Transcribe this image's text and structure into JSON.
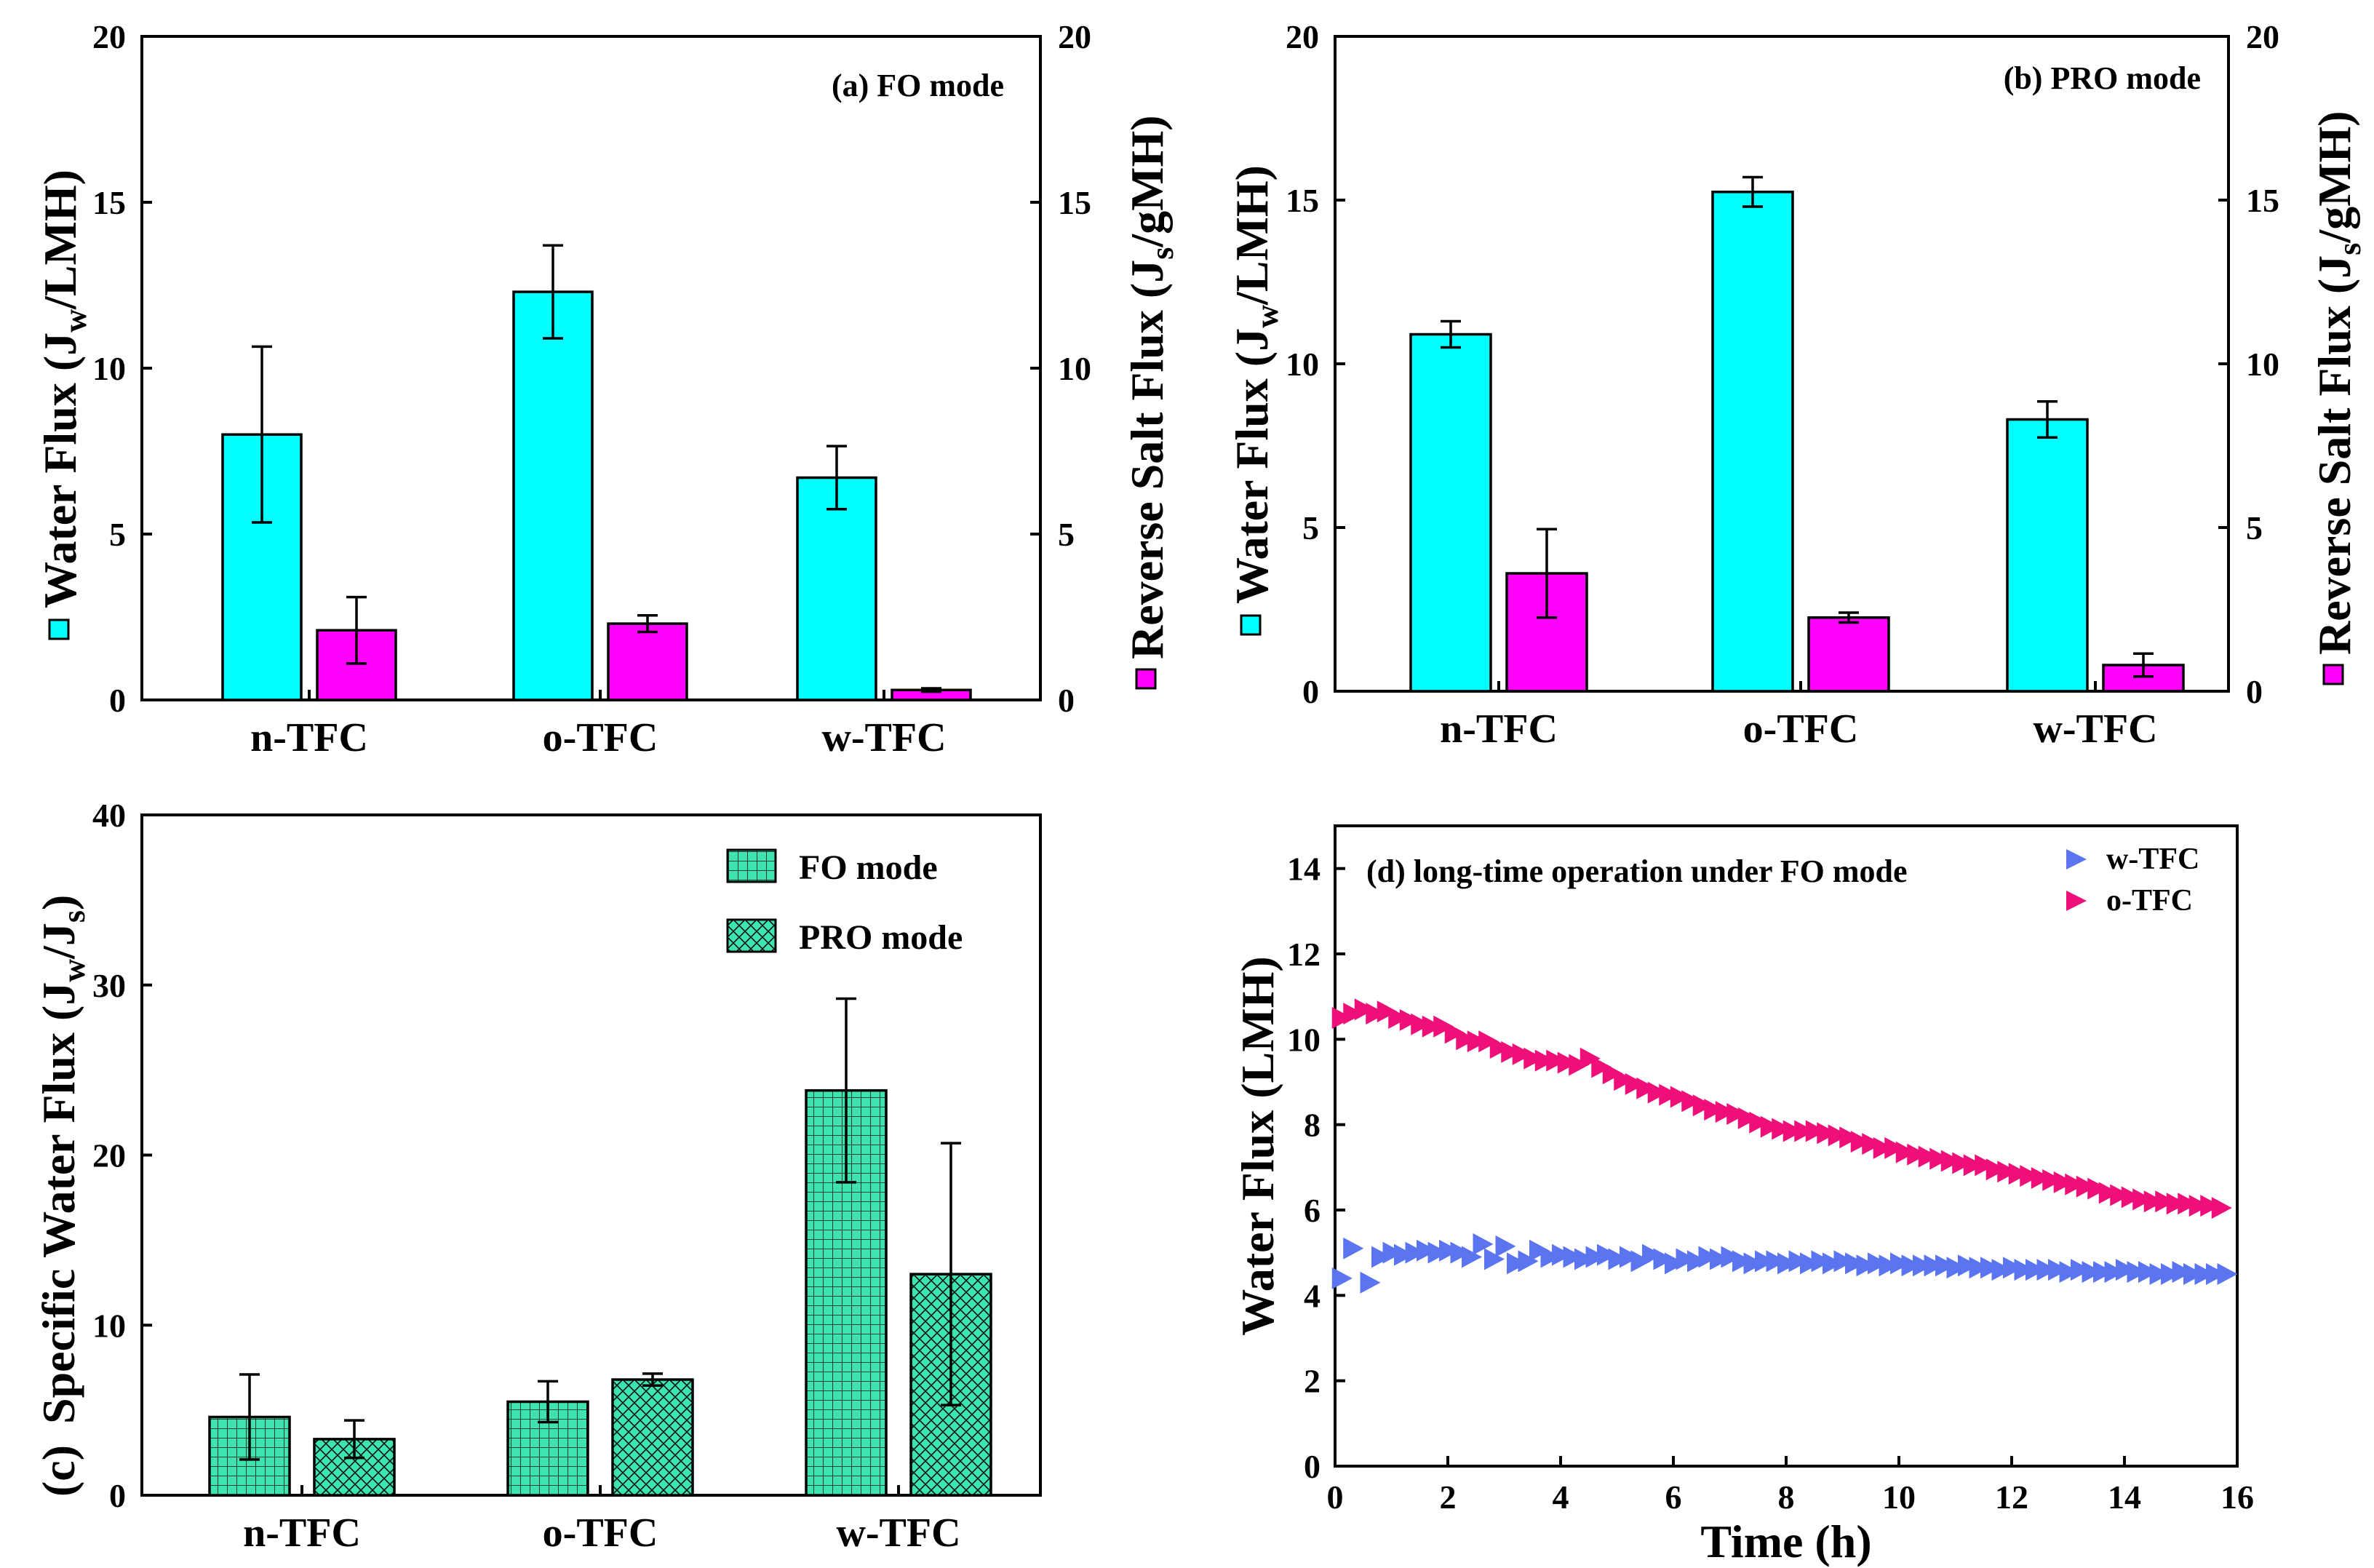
{
  "colors": {
    "water": "#00ffff",
    "salt": "#ff00ff",
    "specific": "#3fe3b0",
    "w_tfc": "#5b74f0",
    "o_tfc": "#ee0f78"
  },
  "chart_data": [
    {
      "type": "bar",
      "panel": "a",
      "annotation": "(a) FO mode",
      "categories": [
        "n-TFC",
        "o-TFC",
        "w-TFC"
      ],
      "ylabel_left": "Water Flux (J_w/LMH)",
      "ylabel_right": "Reverse Salt Flux (J_s/gMH)",
      "ylim": [
        0,
        20
      ],
      "ylim_right": [
        0,
        20
      ],
      "yticks": [
        "0",
        "5",
        "10",
        "15",
        "20"
      ],
      "series": [
        {
          "name": "Water Flux",
          "axis": "left",
          "values": [
            8.0,
            12.3,
            6.7
          ],
          "errors": [
            2.65,
            1.4,
            0.95
          ]
        },
        {
          "name": "Reverse Salt Flux",
          "axis": "right",
          "values": [
            2.1,
            2.3,
            0.3
          ],
          "errors": [
            1.0,
            0.25,
            0.05
          ]
        }
      ]
    },
    {
      "type": "bar",
      "panel": "b",
      "annotation": "(b) PRO mode",
      "categories": [
        "n-TFC",
        "o-TFC",
        "w-TFC"
      ],
      "ylabel_left": "Water Flux (J_w/LMH)",
      "ylabel_right": "Reverse Salt Flux (J_s/gMH)",
      "ylim": [
        0,
        20
      ],
      "ylim_right": [
        0,
        20
      ],
      "yticks": [
        "0",
        "5",
        "10",
        "15",
        "20"
      ],
      "series": [
        {
          "name": "Water Flux",
          "axis": "left",
          "values": [
            10.9,
            15.25,
            8.3
          ],
          "errors": [
            0.4,
            0.45,
            0.55
          ]
        },
        {
          "name": "Reverse Salt Flux",
          "axis": "right",
          "values": [
            3.6,
            2.25,
            0.8
          ],
          "errors": [
            1.35,
            0.15,
            0.35
          ]
        }
      ]
    },
    {
      "type": "bar",
      "panel": "c",
      "annotation": "(c)",
      "categories": [
        "n-TFC",
        "o-TFC",
        "w-TFC"
      ],
      "ylabel": "Specific Water Flux (J_w/J_s)",
      "ylim": [
        0,
        40
      ],
      "yticks": [
        "0",
        "10",
        "20",
        "30",
        "40"
      ],
      "series": [
        {
          "name": "FO mode",
          "values": [
            4.6,
            5.5,
            23.8
          ],
          "errors": [
            2.5,
            1.2,
            5.4
          ]
        },
        {
          "name": "PRO mode",
          "values": [
            3.3,
            6.8,
            13.0
          ],
          "errors": [
            1.1,
            0.35,
            7.7
          ]
        }
      ],
      "legend_position": "top-right"
    },
    {
      "type": "scatter",
      "panel": "d",
      "annotation": "(d) long-time operation under FO mode",
      "xlabel": "Time (h)",
      "ylabel": "Water Flux (LMH)",
      "xlim": [
        0,
        16
      ],
      "ylim": [
        0,
        15
      ],
      "xticks": [
        "0",
        "2",
        "4",
        "6",
        "8",
        "10",
        "12",
        "14",
        "16"
      ],
      "yticks": [
        "0",
        "2",
        "4",
        "6",
        "8",
        "10",
        "12",
        "14"
      ],
      "series": [
        {
          "name": "w-TFC",
          "points": [
            [
              0.1,
              4.4
            ],
            [
              0.3,
              5.1
            ],
            [
              0.6,
              4.3
            ],
            [
              0.8,
              4.9
            ],
            [
              1.0,
              5.0
            ],
            [
              1.2,
              4.95
            ],
            [
              1.4,
              5.0
            ],
            [
              1.6,
              5.05
            ],
            [
              1.8,
              5.0
            ],
            [
              2.0,
              5.05
            ],
            [
              2.2,
              5.0
            ],
            [
              2.4,
              4.9
            ],
            [
              2.6,
              5.2
            ],
            [
              2.8,
              4.85
            ],
            [
              3.0,
              5.15
            ],
            [
              3.2,
              4.75
            ],
            [
              3.4,
              4.8
            ],
            [
              3.6,
              5.05
            ],
            [
              3.8,
              4.9
            ],
            [
              4.0,
              4.95
            ],
            [
              4.2,
              4.9
            ],
            [
              4.4,
              4.85
            ],
            [
              4.6,
              4.9
            ],
            [
              4.8,
              4.95
            ],
            [
              5.0,
              4.85
            ],
            [
              5.2,
              4.9
            ],
            [
              5.4,
              4.8
            ],
            [
              5.6,
              4.95
            ],
            [
              5.8,
              4.85
            ],
            [
              6.0,
              4.75
            ],
            [
              6.2,
              4.85
            ],
            [
              6.4,
              4.8
            ],
            [
              6.6,
              4.9
            ],
            [
              6.8,
              4.85
            ],
            [
              7.0,
              4.9
            ],
            [
              7.2,
              4.8
            ],
            [
              7.4,
              4.75
            ],
            [
              7.6,
              4.8
            ],
            [
              7.8,
              4.8
            ],
            [
              8.0,
              4.75
            ],
            [
              8.2,
              4.8
            ],
            [
              8.4,
              4.75
            ],
            [
              8.6,
              4.8
            ],
            [
              8.8,
              4.75
            ],
            [
              9.0,
              4.8
            ],
            [
              9.2,
              4.75
            ],
            [
              9.4,
              4.7
            ],
            [
              9.6,
              4.75
            ],
            [
              9.8,
              4.7
            ],
            [
              10.0,
              4.75
            ],
            [
              10.2,
              4.7
            ],
            [
              10.4,
              4.7
            ],
            [
              10.6,
              4.7
            ],
            [
              10.8,
              4.7
            ],
            [
              11.0,
              4.65
            ],
            [
              11.2,
              4.7
            ],
            [
              11.4,
              4.65
            ],
            [
              11.6,
              4.65
            ],
            [
              11.8,
              4.6
            ],
            [
              12.0,
              4.65
            ],
            [
              12.2,
              4.6
            ],
            [
              12.4,
              4.6
            ],
            [
              12.6,
              4.6
            ],
            [
              12.8,
              4.6
            ],
            [
              13.0,
              4.55
            ],
            [
              13.2,
              4.6
            ],
            [
              13.4,
              4.55
            ],
            [
              13.6,
              4.55
            ],
            [
              13.8,
              4.55
            ],
            [
              14.0,
              4.6
            ],
            [
              14.2,
              4.55
            ],
            [
              14.4,
              4.55
            ],
            [
              14.6,
              4.5
            ],
            [
              14.8,
              4.5
            ],
            [
              15.0,
              4.55
            ],
            [
              15.2,
              4.5
            ],
            [
              15.4,
              4.5
            ],
            [
              15.6,
              4.5
            ],
            [
              15.8,
              4.5
            ]
          ]
        },
        {
          "name": "o-TFC",
          "points": [
            [
              0.1,
              10.5
            ],
            [
              0.3,
              10.6
            ],
            [
              0.5,
              10.7
            ],
            [
              0.7,
              10.6
            ],
            [
              0.9,
              10.65
            ],
            [
              1.1,
              10.5
            ],
            [
              1.3,
              10.45
            ],
            [
              1.5,
              10.35
            ],
            [
              1.7,
              10.3
            ],
            [
              1.9,
              10.3
            ],
            [
              2.1,
              10.15
            ],
            [
              2.3,
              10.0
            ],
            [
              2.5,
              9.95
            ],
            [
              2.7,
              9.95
            ],
            [
              2.9,
              9.8
            ],
            [
              3.1,
              9.7
            ],
            [
              3.3,
              9.65
            ],
            [
              3.5,
              9.55
            ],
            [
              3.7,
              9.5
            ],
            [
              3.9,
              9.5
            ],
            [
              4.1,
              9.45
            ],
            [
              4.3,
              9.4
            ],
            [
              4.5,
              9.55
            ],
            [
              4.7,
              9.35
            ],
            [
              4.9,
              9.2
            ],
            [
              5.1,
              9.05
            ],
            [
              5.3,
              8.95
            ],
            [
              5.5,
              8.85
            ],
            [
              5.7,
              8.75
            ],
            [
              5.9,
              8.7
            ],
            [
              6.1,
              8.65
            ],
            [
              6.3,
              8.55
            ],
            [
              6.5,
              8.45
            ],
            [
              6.7,
              8.35
            ],
            [
              6.9,
              8.3
            ],
            [
              7.1,
              8.25
            ],
            [
              7.3,
              8.15
            ],
            [
              7.5,
              8.05
            ],
            [
              7.7,
              7.95
            ],
            [
              7.9,
              7.9
            ],
            [
              8.1,
              7.85
            ],
            [
              8.3,
              7.85
            ],
            [
              8.5,
              7.85
            ],
            [
              8.7,
              7.8
            ],
            [
              8.9,
              7.75
            ],
            [
              9.1,
              7.7
            ],
            [
              9.3,
              7.6
            ],
            [
              9.5,
              7.55
            ],
            [
              9.7,
              7.45
            ],
            [
              9.9,
              7.45
            ],
            [
              10.1,
              7.35
            ],
            [
              10.3,
              7.3
            ],
            [
              10.5,
              7.25
            ],
            [
              10.7,
              7.2
            ],
            [
              10.9,
              7.15
            ],
            [
              11.1,
              7.1
            ],
            [
              11.3,
              7.05
            ],
            [
              11.5,
              7.05
            ],
            [
              11.7,
              6.95
            ],
            [
              11.9,
              6.9
            ],
            [
              12.1,
              6.85
            ],
            [
              12.3,
              6.8
            ],
            [
              12.5,
              6.75
            ],
            [
              12.7,
              6.7
            ],
            [
              12.9,
              6.65
            ],
            [
              13.1,
              6.6
            ],
            [
              13.3,
              6.55
            ],
            [
              13.5,
              6.5
            ],
            [
              13.7,
              6.4
            ],
            [
              13.9,
              6.35
            ],
            [
              14.1,
              6.3
            ],
            [
              14.3,
              6.25
            ],
            [
              14.5,
              6.2
            ],
            [
              14.7,
              6.2
            ],
            [
              14.9,
              6.15
            ],
            [
              15.1,
              6.15
            ],
            [
              15.3,
              6.1
            ],
            [
              15.5,
              6.1
            ],
            [
              15.7,
              6.05
            ]
          ]
        }
      ],
      "legend_position": "top-right"
    }
  ]
}
